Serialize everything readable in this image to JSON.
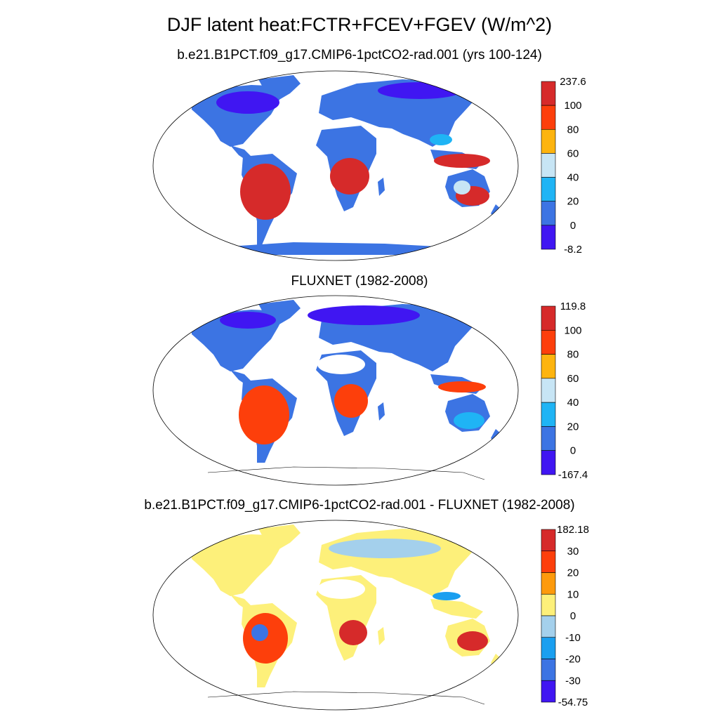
{
  "figure": {
    "title": "DJF latent heat:FCTR+FCEV+FGEV (W/m^2)"
  },
  "panels": [
    {
      "title": "b.e21.B1PCT.f09_g17.CMIP6-1pctCO2-rad.001 (yrs 100-124)",
      "colorbar": {
        "labels": [
          "237.6",
          "100",
          "80",
          "60",
          "40",
          "20",
          "0",
          "-8.2"
        ],
        "colors": [
          "#d62a2a",
          "#fd3f0b",
          "#fdb40f",
          "#c7e5f5",
          "#1fb4f5",
          "#3c74e3",
          "#4016f2"
        ]
      }
    },
    {
      "title": "FLUXNET (1982-2008)",
      "colorbar": {
        "labels": [
          "119.8",
          "100",
          "80",
          "60",
          "40",
          "20",
          "0",
          "-167.4"
        ],
        "colors": [
          "#d62a2a",
          "#fd3f0b",
          "#fdb40f",
          "#c7e5f5",
          "#1fb4f5",
          "#3c74e3",
          "#4016f2"
        ]
      }
    },
    {
      "title": "b.e21.B1PCT.f09_g17.CMIP6-1pctCO2-rad.001 - FLUXNET (1982-2008)",
      "colorbar": {
        "labels": [
          "182.18",
          "30",
          "20",
          "10",
          "0",
          "-10",
          "-20",
          "-30",
          "-54.75"
        ],
        "colors": [
          "#d62a2a",
          "#fd3f0b",
          "#fd9a0c",
          "#fdf07a",
          "#a4d0ec",
          "#1a9ff0",
          "#3c74e3",
          "#4016f2"
        ]
      }
    }
  ]
}
